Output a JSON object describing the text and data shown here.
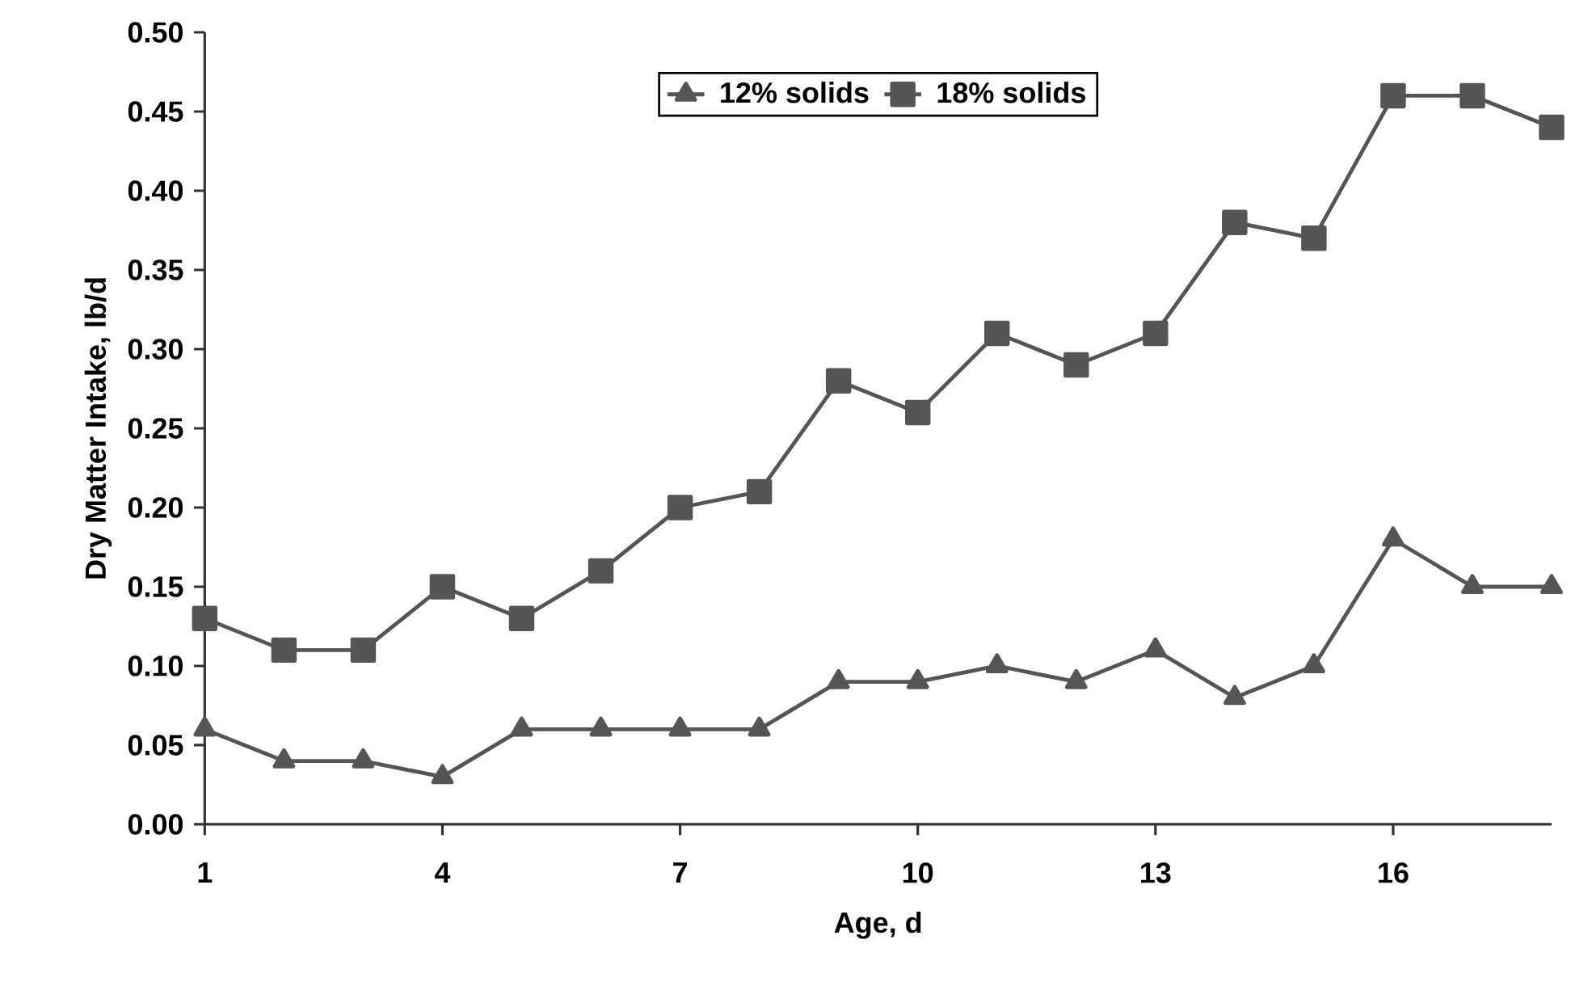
{
  "chart_data": {
    "type": "line",
    "xlabel": "Age, d",
    "ylabel": "Dry Matter Intake, lb/d",
    "x": [
      1,
      2,
      3,
      4,
      5,
      6,
      7,
      8,
      9,
      10,
      11,
      12,
      13,
      14,
      15,
      16,
      17,
      18
    ],
    "series": [
      {
        "name": "12% solids",
        "color": "#555555",
        "marker": "triangle",
        "values": [
          0.06,
          0.04,
          0.04,
          0.03,
          0.06,
          0.06,
          0.06,
          0.06,
          0.09,
          0.09,
          0.1,
          0.09,
          0.11,
          0.08,
          0.1,
          0.18,
          0.15,
          0.15
        ]
      },
      {
        "name": "18% solids",
        "color": "#555555",
        "marker": "square",
        "values": [
          0.13,
          0.11,
          0.11,
          0.15,
          0.13,
          0.16,
          0.2,
          0.21,
          0.28,
          0.26,
          0.31,
          0.29,
          0.31,
          0.38,
          0.37,
          0.46,
          0.46,
          0.44
        ]
      }
    ],
    "xlim": [
      1,
      18
    ],
    "xticks": [
      1,
      4,
      7,
      10,
      13,
      16
    ],
    "ylim": [
      0,
      0.5
    ],
    "yticks": [
      {
        "value": 0,
        "label": "0.00"
      },
      {
        "value": 0.05,
        "label": "0.05"
      },
      {
        "value": 0.1,
        "label": "0.10"
      },
      {
        "value": 0.15,
        "label": "0.15"
      },
      {
        "value": 0.2,
        "label": "0.20"
      },
      {
        "value": 0.25,
        "label": "0.25"
      },
      {
        "value": 0.3,
        "label": "0.30"
      },
      {
        "value": 0.35,
        "label": "0.35"
      },
      {
        "value": 0.4,
        "label": "0.40"
      },
      {
        "value": 0.45,
        "label": "0.45"
      },
      {
        "value": 0.5,
        "label": "0.50"
      }
    ],
    "grid": false,
    "legend": "top",
    "line_style": "solid"
  }
}
